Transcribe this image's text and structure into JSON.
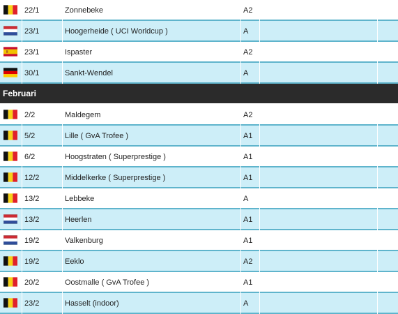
{
  "pre_rows": [
    {
      "flag": "belgium-flag-icon",
      "date": "22/1",
      "race": "Zonnebeke",
      "category": "A2"
    },
    {
      "flag": "netherlands-flag-icon",
      "date": "23/1",
      "race": "Hoogerheide ( UCI Worldcup )",
      "category": "A"
    },
    {
      "flag": "spain-flag-icon",
      "date": "23/1",
      "race": "Ispaster",
      "category": "A2"
    },
    {
      "flag": "germany-flag-icon",
      "date": "30/1",
      "race": "Sankt-Wendel",
      "category": "A"
    }
  ],
  "month_header": {
    "title": "Februari"
  },
  "rows": [
    {
      "flag": "belgium-flag-icon",
      "date": "2/2",
      "race": "Maldegem",
      "category": "A2"
    },
    {
      "flag": "belgium-flag-icon",
      "date": "5/2",
      "race": "Lille ( GvA Trofee )",
      "category": "A1"
    },
    {
      "flag": "belgium-flag-icon",
      "date": "6/2",
      "race": "Hoogstraten ( Superprestige )",
      "category": "A1"
    },
    {
      "flag": "belgium-flag-icon",
      "date": "12/2",
      "race": "Middelkerke ( Superprestige )",
      "category": "A1"
    },
    {
      "flag": "belgium-flag-icon",
      "date": "13/2",
      "race": "Lebbeke",
      "category": "A"
    },
    {
      "flag": "netherlands-flag-icon",
      "date": "13/2",
      "race": "Heerlen",
      "category": "A1"
    },
    {
      "flag": "netherlands-flag-icon",
      "date": "19/2",
      "race": "Valkenburg",
      "category": "A1"
    },
    {
      "flag": "belgium-flag-icon",
      "date": "19/2",
      "race": "Eeklo",
      "category": "A2"
    },
    {
      "flag": "belgium-flag-icon",
      "date": "20/2",
      "race": "Oostmalle ( GvA Trofee )",
      "category": "A1"
    },
    {
      "flag": "belgium-flag-icon",
      "date": "23/2",
      "race": "Hasselt (indoor)",
      "category": "A"
    }
  ],
  "colors": {
    "row_odd": "#ffffff",
    "row_even": "#cdeef8",
    "row_separator": "#5fb4cc",
    "month_header_bg": "#2b2b2b"
  }
}
